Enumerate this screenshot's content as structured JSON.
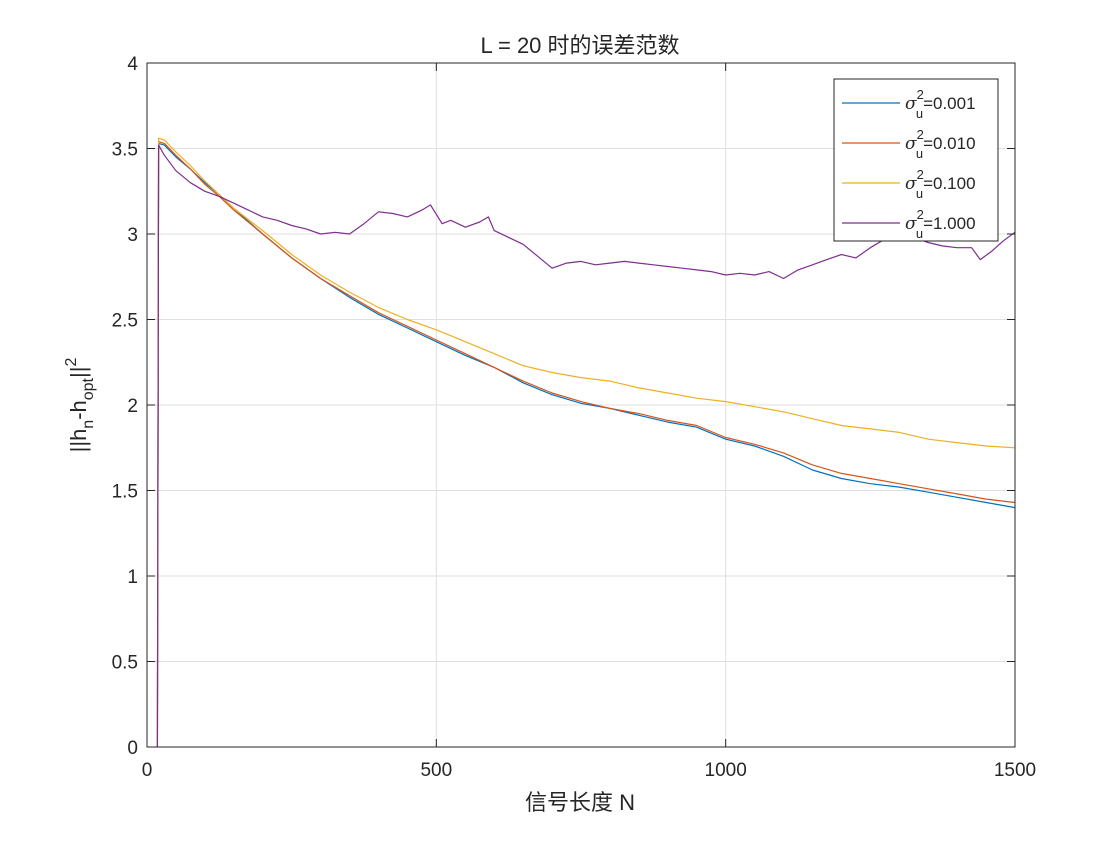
{
  "chart_data": {
    "type": "line",
    "title": "L = 20 时的误差范数",
    "xlabel": "信号长度 N",
    "ylabel": {
      "main": "||h",
      "sub1": "n",
      "mid": "-h",
      "sub2": "opt",
      "end": "||",
      "sup": "2"
    },
    "xlim": [
      0,
      1500
    ],
    "ylim": [
      0,
      4
    ],
    "xticks": [
      0,
      500,
      1000,
      1500
    ],
    "xtick_labels": [
      "0",
      "500",
      "1000",
      "1500"
    ],
    "yticks": [
      0,
      0.5,
      1,
      1.5,
      2,
      2.5,
      3,
      3.5,
      4
    ],
    "ytick_labels": [
      "0",
      "0.5",
      "1",
      "1.5",
      "2",
      "2.5",
      "3",
      "3.5",
      "4"
    ],
    "grid": true,
    "legend_position": "top-right",
    "series": [
      {
        "name": "0.001",
        "legend": {
          "sym": "σ",
          "sup": "2",
          "sub": "u",
          "value": "=0.001"
        },
        "color": "#0072BD",
        "x": [
          18,
          20,
          30,
          50,
          75,
          100,
          125,
          150,
          200,
          250,
          300,
          350,
          400,
          450,
          500,
          550,
          600,
          650,
          700,
          750,
          800,
          850,
          900,
          950,
          1000,
          1050,
          1100,
          1150,
          1200,
          1250,
          1300,
          1350,
          1400,
          1450,
          1500
        ],
        "y": [
          0,
          3.53,
          3.52,
          3.45,
          3.38,
          3.3,
          3.23,
          3.15,
          3.0,
          2.86,
          2.74,
          2.63,
          2.53,
          2.45,
          2.37,
          2.29,
          2.22,
          2.13,
          2.06,
          2.01,
          1.98,
          1.94,
          1.9,
          1.87,
          1.8,
          1.76,
          1.7,
          1.62,
          1.57,
          1.54,
          1.52,
          1.49,
          1.46,
          1.43,
          1.4
        ]
      },
      {
        "name": "0.010",
        "legend": {
          "sym": "σ",
          "sup": "2",
          "sub": "u",
          "value": "=0.010"
        },
        "color": "#D95319",
        "x": [
          18,
          20,
          30,
          50,
          75,
          100,
          125,
          150,
          200,
          250,
          300,
          350,
          400,
          450,
          500,
          550,
          600,
          650,
          700,
          750,
          800,
          850,
          900,
          950,
          1000,
          1050,
          1100,
          1150,
          1200,
          1250,
          1300,
          1350,
          1400,
          1450,
          1500
        ],
        "y": [
          0,
          3.54,
          3.53,
          3.46,
          3.38,
          3.29,
          3.22,
          3.14,
          3.0,
          2.86,
          2.74,
          2.64,
          2.54,
          2.46,
          2.38,
          2.3,
          2.22,
          2.14,
          2.07,
          2.02,
          1.98,
          1.95,
          1.91,
          1.88,
          1.81,
          1.77,
          1.72,
          1.65,
          1.6,
          1.57,
          1.54,
          1.51,
          1.48,
          1.45,
          1.43
        ]
      },
      {
        "name": "0.100",
        "legend": {
          "sym": "σ",
          "sup": "2",
          "sub": "u",
          "value": "=0.100"
        },
        "color": "#EDB120",
        "x": [
          18,
          20,
          30,
          50,
          75,
          100,
          125,
          150,
          200,
          250,
          300,
          350,
          400,
          450,
          500,
          550,
          600,
          650,
          700,
          750,
          800,
          850,
          900,
          950,
          1000,
          1050,
          1100,
          1150,
          1200,
          1250,
          1300,
          1350,
          1400,
          1450,
          1500
        ],
        "y": [
          0,
          3.56,
          3.55,
          3.48,
          3.4,
          3.31,
          3.23,
          3.15,
          3.02,
          2.88,
          2.76,
          2.66,
          2.57,
          2.5,
          2.44,
          2.37,
          2.3,
          2.23,
          2.19,
          2.16,
          2.14,
          2.1,
          2.07,
          2.04,
          2.02,
          1.99,
          1.96,
          1.92,
          1.88,
          1.86,
          1.84,
          1.8,
          1.78,
          1.76,
          1.75
        ]
      },
      {
        "name": "1.000",
        "legend": {
          "sym": "σ",
          "sup": "2",
          "sub": "u",
          "value": "=1.000"
        },
        "color": "#7E2F8E",
        "x": [
          18,
          20,
          30,
          50,
          75,
          100,
          125,
          150,
          175,
          200,
          225,
          250,
          275,
          300,
          325,
          350,
          375,
          400,
          425,
          450,
          475,
          490,
          510,
          525,
          550,
          575,
          590,
          600,
          625,
          650,
          675,
          700,
          725,
          750,
          775,
          800,
          825,
          850,
          875,
          900,
          925,
          950,
          975,
          1000,
          1025,
          1050,
          1075,
          1100,
          1125,
          1150,
          1175,
          1200,
          1225,
          1250,
          1275,
          1300,
          1325,
          1350,
          1375,
          1400,
          1425,
          1440,
          1460,
          1480,
          1500
        ],
        "y": [
          0,
          3.52,
          3.46,
          3.37,
          3.3,
          3.25,
          3.22,
          3.18,
          3.14,
          3.1,
          3.08,
          3.05,
          3.03,
          3.0,
          3.01,
          3.0,
          3.06,
          3.13,
          3.12,
          3.1,
          3.14,
          3.17,
          3.06,
          3.08,
          3.04,
          3.07,
          3.1,
          3.02,
          2.98,
          2.94,
          2.87,
          2.8,
          2.83,
          2.84,
          2.82,
          2.83,
          2.84,
          2.83,
          2.82,
          2.81,
          2.8,
          2.79,
          2.78,
          2.76,
          2.77,
          2.76,
          2.78,
          2.74,
          2.79,
          2.82,
          2.85,
          2.88,
          2.86,
          2.92,
          2.97,
          3.0,
          2.98,
          2.95,
          2.93,
          2.92,
          2.92,
          2.85,
          2.9,
          2.96,
          3.01
        ]
      }
    ]
  }
}
